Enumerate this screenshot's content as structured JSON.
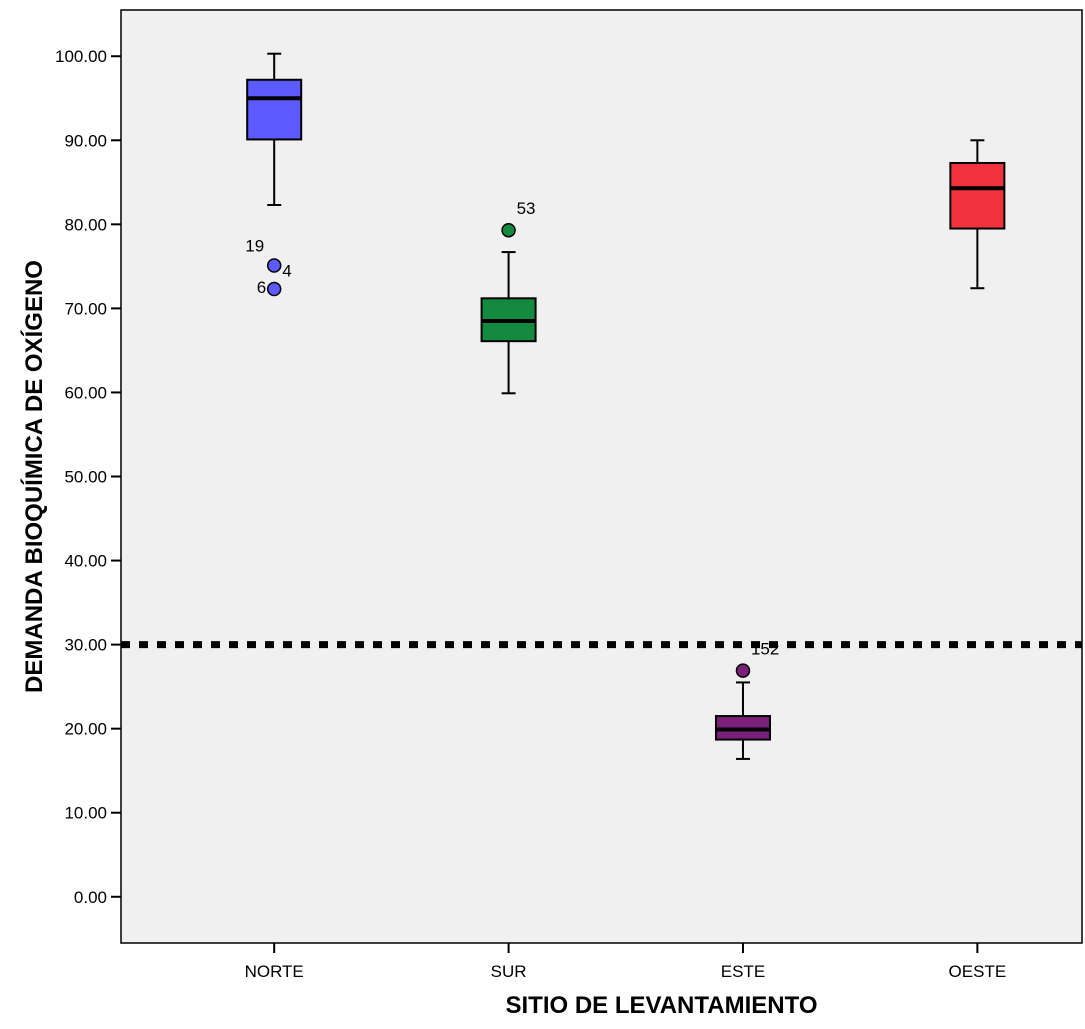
{
  "chart_data": {
    "type": "boxplot",
    "xlabel": "SITIO DE LEVANTAMIENTO",
    "ylabel": "DEMANDA BIOQUÍMICA DE OXÍGENO",
    "ylim": [
      -5.5,
      105.5
    ],
    "yticks": [
      0,
      10,
      20,
      30,
      40,
      50,
      60,
      70,
      80,
      90,
      100
    ],
    "ytick_labels": [
      "0.00",
      "10.00",
      "20.00",
      "30.00",
      "40.00",
      "50.00",
      "60.00",
      "70.00",
      "80.00",
      "90.00",
      "100.00"
    ],
    "categories": [
      "NORTE",
      "SUR",
      "ESTE",
      "OESTE"
    ],
    "grid": false,
    "plot_background": "#f0f0f0",
    "reference_line": {
      "y": 30,
      "style": "dotted",
      "color": "#000000"
    },
    "boxes": [
      {
        "category": "NORTE",
        "color": "#5b5bff",
        "whisker_low": 82.3,
        "q1": 90.1,
        "median": 95.0,
        "q3": 97.2,
        "whisker_high": 100.3,
        "outliers": [
          {
            "value": 75.1,
            "label": "19"
          },
          {
            "value": 72.3,
            "label": "6"
          }
        ],
        "extra_labels": [
          "4"
        ]
      },
      {
        "category": "SUR",
        "color": "#138a3e",
        "whisker_low": 59.9,
        "q1": 66.1,
        "median": 68.5,
        "q3": 71.2,
        "whisker_high": 76.7,
        "outliers": [
          {
            "value": 79.3,
            "label": "53"
          }
        ]
      },
      {
        "category": "ESTE",
        "color": "#7a1f7a",
        "whisker_low": 16.4,
        "q1": 18.7,
        "median": 19.9,
        "q3": 21.5,
        "whisker_high": 25.5,
        "outliers": [
          {
            "value": 26.9,
            "label": "152"
          }
        ]
      },
      {
        "category": "OESTE",
        "color": "#f0323c",
        "whisker_low": 72.4,
        "q1": 79.5,
        "median": 84.3,
        "q3": 87.3,
        "whisker_high": 90.0,
        "outliers": []
      }
    ]
  }
}
